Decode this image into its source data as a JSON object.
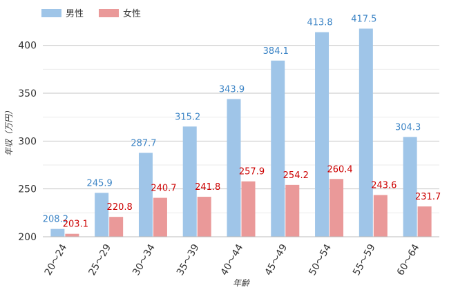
{
  "chart_data": {
    "type": "bar",
    "xlabel": "年齢",
    "ylabel": "年収（万円）",
    "categories": [
      "20〜24",
      "25〜29",
      "30〜34",
      "35〜39",
      "40〜44",
      "45〜49",
      "50〜54",
      "55〜59",
      "60〜64"
    ],
    "series": [
      {
        "name": "男性",
        "color": "#9fc5e8",
        "label_color": "#3d85c6",
        "values": [
          208.2,
          245.9,
          287.7,
          315.2,
          343.9,
          384.1,
          413.8,
          417.5,
          304.3
        ]
      },
      {
        "name": "女性",
        "color": "#ea9999",
        "label_color": "#cc0000",
        "values": [
          203.1,
          220.8,
          240.7,
          241.8,
          257.9,
          254.2,
          260.4,
          243.6,
          231.7
        ]
      }
    ],
    "ylim": [
      200,
      420
    ],
    "yticks": [
      200,
      250,
      300,
      350,
      400
    ],
    "grid": true,
    "legend_position": "top-left"
  }
}
